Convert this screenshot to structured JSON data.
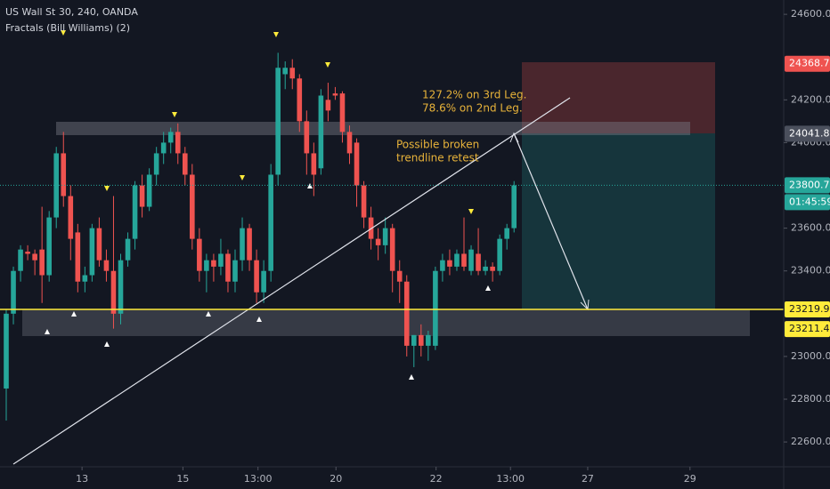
{
  "chart_data": {
    "type": "candlestick",
    "title": "US Wall St 30, 240, OANDA",
    "subtitle": "Fractals (Bill Williams) (2)",
    "annotations": [
      "127.2% on 3rd Leg.",
      "78.6% on 2nd Leg.",
      "Possible broken",
      "trendline retest"
    ],
    "x": [
      1,
      2,
      3,
      4,
      5,
      6,
      7,
      8,
      9,
      10,
      11,
      12,
      13,
      14,
      15,
      16,
      17,
      18,
      19,
      20,
      21,
      22,
      23,
      24,
      25,
      26,
      27,
      28,
      29,
      30,
      31,
      32,
      33,
      34,
      35,
      36,
      37,
      38,
      39,
      40,
      41,
      42,
      43,
      44,
      45,
      46,
      47,
      48,
      49,
      50,
      51,
      52,
      53,
      54,
      55,
      56,
      57,
      58,
      59,
      60,
      61,
      62,
      63,
      64,
      65,
      66,
      67,
      68,
      69,
      70,
      71,
      72
    ],
    "open": [
      22850,
      23200,
      23400,
      23490,
      23480,
      23500,
      23380,
      23650,
      23950,
      23750,
      23580,
      23350,
      23380,
      23600,
      23450,
      23400,
      23200,
      23450,
      23550,
      23800,
      23700,
      23850,
      23950,
      24000,
      24050,
      23950,
      23850,
      23550,
      23400,
      23450,
      23420,
      23480,
      23350,
      23450,
      23600,
      23450,
      23300,
      23400,
      23850,
      24320,
      24350,
      24300,
      24100,
      23950,
      23880,
      24200,
      24230,
      24230,
      24050,
      24000,
      23800,
      23650,
      23550,
      23520,
      23600,
      23400,
      23350,
      23050,
      23100,
      23050,
      23050,
      23400,
      23450,
      23420,
      23480,
      23400,
      23480,
      23400,
      23420,
      23400,
      23550,
      23600
    ],
    "high": [
      23220,
      23420,
      23520,
      23520,
      23500,
      23700,
      23680,
      23980,
      24050,
      23800,
      23620,
      23420,
      23620,
      23650,
      23500,
      23750,
      23480,
      23580,
      23820,
      23850,
      23880,
      23980,
      24050,
      24070,
      24090,
      23980,
      23900,
      23600,
      23480,
      23480,
      23550,
      23500,
      23500,
      23650,
      23620,
      23500,
      23450,
      23900,
      24420,
      24380,
      24390,
      24320,
      24150,
      24000,
      24250,
      24280,
      24260,
      24240,
      24080,
      24020,
      23820,
      23700,
      23600,
      23650,
      23620,
      23450,
      23380,
      23100,
      23150,
      23120,
      23420,
      23480,
      23500,
      23500,
      23650,
      23520,
      23600,
      23450,
      23440,
      23570,
      23620,
      23820
    ],
    "low": [
      22700,
      23150,
      23350,
      23450,
      23380,
      23250,
      23350,
      23600,
      23700,
      23450,
      23300,
      23300,
      23350,
      23420,
      23350,
      23130,
      23150,
      23420,
      23500,
      23650,
      23680,
      23800,
      23900,
      23950,
      23900,
      23800,
      23500,
      23350,
      23300,
      23350,
      23380,
      23300,
      23300,
      23400,
      23400,
      23250,
      23250,
      23350,
      23800,
      24250,
      24250,
      24050,
      23850,
      23750,
      23850,
      24100,
      24200,
      24000,
      23900,
      23700,
      23600,
      23500,
      23450,
      23480,
      23300,
      23250,
      23000,
      22950,
      23000,
      22980,
      23030,
      23350,
      23380,
      23400,
      23400,
      23380,
      23380,
      23380,
      23350,
      23380,
      23500,
      23580
    ],
    "close": [
      23200,
      23400,
      23500,
      23480,
      23450,
      23380,
      23650,
      23950,
      23750,
      23550,
      23350,
      23380,
      23600,
      23450,
      23400,
      23200,
      23450,
      23550,
      23800,
      23700,
      23850,
      23950,
      24000,
      24050,
      23950,
      23850,
      23550,
      23400,
      23450,
      23420,
      23480,
      23350,
      23450,
      23600,
      23450,
      23300,
      23400,
      23850,
      24350,
      24350,
      24300,
      24100,
      23950,
      23850,
      24220,
      24150,
      24220,
      24050,
      23950,
      23800,
      23650,
      23550,
      23520,
      23600,
      23400,
      23350,
      23050,
      23100,
      23050,
      23100,
      23400,
      23450,
      23420,
      23480,
      23420,
      23500,
      23400,
      23420,
      23400,
      23550,
      23600,
      23800
    ],
    "up_color": "#26a69a",
    "down_color": "#ef5350",
    "xlim": [
      0.128,
      109.7
    ],
    "xticks": [
      {
        "value": 11.6,
        "label": "13"
      },
      {
        "value": 25.7,
        "label": "15"
      },
      {
        "value": 36.2,
        "label": "13:00"
      },
      {
        "value": 47.1,
        "label": "20"
      },
      {
        "value": 61.1,
        "label": "22"
      },
      {
        "value": 71.5,
        "label": "13:00"
      },
      {
        "value": 82.3,
        "label": "27"
      },
      {
        "value": 96.6,
        "label": "29"
      }
    ],
    "ylim": [
      22484,
      24667
    ],
    "yticks": [
      {
        "value": 22600,
        "label": "22600.0"
      },
      {
        "value": 22800,
        "label": "22800.0"
      },
      {
        "value": 23000,
        "label": "23000.0"
      },
      {
        "value": 23400,
        "label": "23400.0"
      },
      {
        "value": 23600,
        "label": "23600.0"
      },
      {
        "value": 24000,
        "label": "24000.0"
      },
      {
        "value": 24200,
        "label": "24200.0"
      },
      {
        "value": 24600,
        "label": "24600.0"
      }
    ],
    "price_badges": [
      {
        "value": 24368.7,
        "color": "#ef5350"
      },
      {
        "value": 24041.8,
        "color": "#4a4f5c"
      },
      {
        "value": 23800.7,
        "color": "#26a69a"
      },
      {
        "value": 23219.9,
        "color": "#ffeb3b"
      },
      {
        "value": 23211.4,
        "color": "#ffeb3b"
      }
    ],
    "countdown": "01:45:59"
  }
}
